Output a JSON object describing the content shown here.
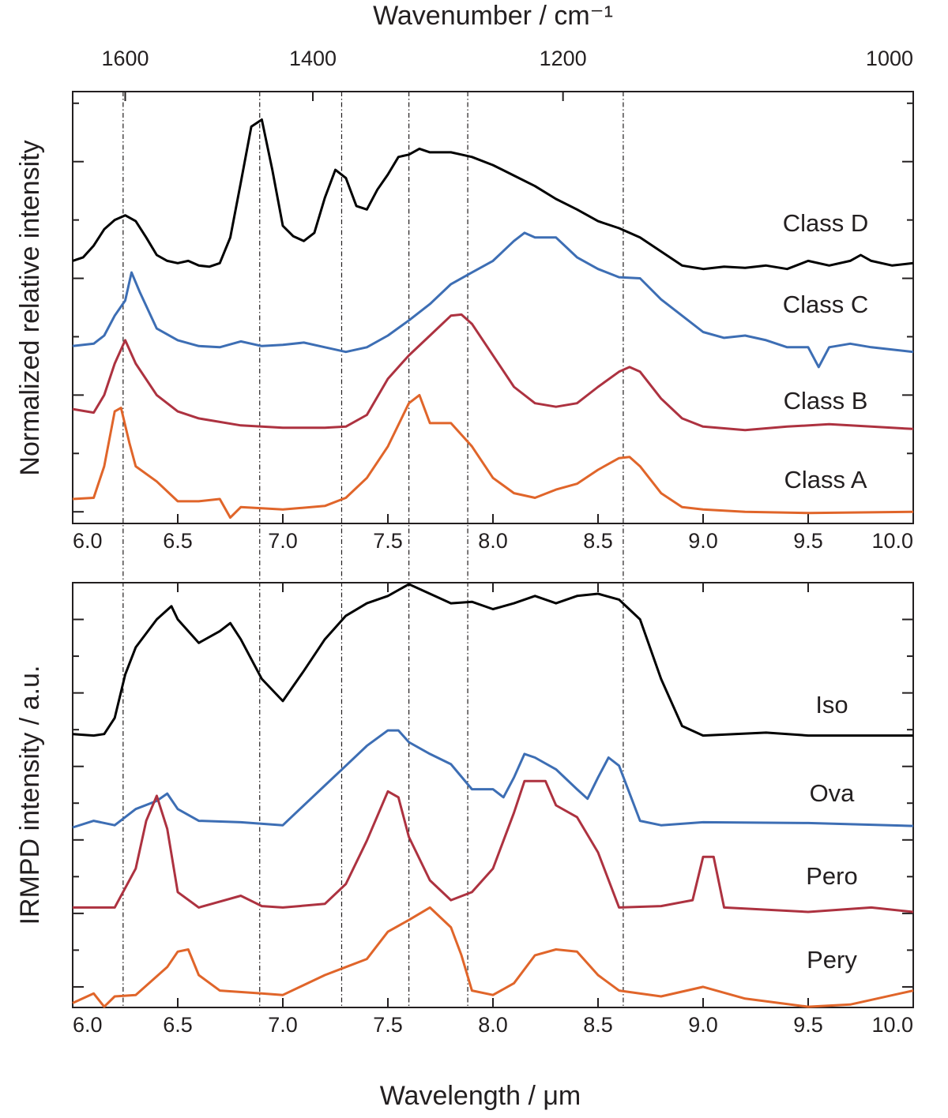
{
  "chart_data": [
    {
      "type": "line",
      "x2label": "Wavenumber / cm⁻¹",
      "x2ticks": [
        1600,
        1400,
        1200,
        1000
      ],
      "ylabel": "Normalized relative intensity",
      "xlim": [
        6,
        10
      ],
      "xticks": [
        {
          "value": 6,
          "label": "6.0"
        },
        {
          "value": 6.5,
          "label": "6.5"
        },
        {
          "value": 7,
          "label": "7.0"
        },
        {
          "value": 7.5,
          "label": "7.5"
        },
        {
          "value": 8,
          "label": "8.0"
        },
        {
          "value": 8.5,
          "label": "8.5"
        },
        {
          "value": 9,
          "label": "9.0"
        },
        {
          "value": 9.5,
          "label": "9.5"
        },
        {
          "value": 10,
          "label": "10.0"
        }
      ],
      "ylim": [
        -0.1,
        3.6
      ],
      "yticks": [
        0,
        0.5,
        1,
        1.5,
        2,
        2.5,
        3,
        3.5
      ],
      "vlines": [
        6.24,
        6.89,
        7.28,
        7.6,
        7.88,
        8.62
      ],
      "series": [
        {
          "name": "Class D",
          "color": "#000000",
          "x": [
            6.0,
            6.05,
            6.1,
            6.15,
            6.2,
            6.25,
            6.3,
            6.35,
            6.4,
            6.45,
            6.5,
            6.55,
            6.6,
            6.65,
            6.7,
            6.75,
            6.8,
            6.85,
            6.9,
            6.95,
            7.0,
            7.05,
            7.1,
            7.15,
            7.2,
            7.25,
            7.3,
            7.35,
            7.4,
            7.45,
            7.5,
            7.55,
            7.6,
            7.65,
            7.7,
            7.75,
            7.8,
            7.85,
            7.9,
            8.0,
            8.1,
            8.2,
            8.3,
            8.4,
            8.5,
            8.6,
            8.7,
            8.8,
            8.9,
            9.0,
            9.1,
            9.2,
            9.3,
            9.4,
            9.5,
            9.6,
            9.7,
            9.75,
            9.8,
            9.9,
            10.0
          ],
          "values": [
            2.15,
            2.18,
            2.28,
            2.42,
            2.5,
            2.54,
            2.49,
            2.35,
            2.2,
            2.15,
            2.13,
            2.15,
            2.11,
            2.1,
            2.13,
            2.35,
            2.82,
            3.3,
            3.36,
            2.93,
            2.45,
            2.36,
            2.32,
            2.39,
            2.69,
            2.93,
            2.86,
            2.62,
            2.59,
            2.76,
            2.89,
            3.04,
            3.06,
            3.11,
            3.08,
            3.08,
            3.08,
            3.06,
            3.04,
            2.97,
            2.88,
            2.79,
            2.68,
            2.59,
            2.49,
            2.43,
            2.35,
            2.23,
            2.11,
            2.08,
            2.1,
            2.09,
            2.11,
            2.08,
            2.15,
            2.11,
            2.15,
            2.2,
            2.15,
            2.11,
            2.13
          ]
        },
        {
          "name": "Class C",
          "color": "#3d6eb4",
          "x": [
            6.0,
            6.1,
            6.15,
            6.2,
            6.25,
            6.28,
            6.32,
            6.4,
            6.5,
            6.6,
            6.7,
            6.8,
            6.9,
            7.0,
            7.1,
            7.2,
            7.3,
            7.4,
            7.5,
            7.6,
            7.7,
            7.8,
            7.9,
            8.0,
            8.1,
            8.15,
            8.2,
            8.3,
            8.4,
            8.5,
            8.6,
            8.7,
            8.8,
            8.9,
            9.0,
            9.1,
            9.2,
            9.3,
            9.4,
            9.5,
            9.55,
            9.6,
            9.7,
            9.8,
            9.9,
            10.0
          ],
          "values": [
            1.42,
            1.44,
            1.51,
            1.68,
            1.81,
            2.05,
            1.88,
            1.57,
            1.47,
            1.42,
            1.41,
            1.46,
            1.42,
            1.43,
            1.45,
            1.41,
            1.37,
            1.41,
            1.51,
            1.64,
            1.78,
            1.95,
            2.05,
            2.15,
            2.32,
            2.39,
            2.35,
            2.35,
            2.18,
            2.08,
            2.01,
            2.0,
            1.82,
            1.68,
            1.54,
            1.49,
            1.51,
            1.47,
            1.41,
            1.41,
            1.24,
            1.41,
            1.44,
            1.41,
            1.39,
            1.37
          ]
        },
        {
          "name": "Class B",
          "color": "#ad3240",
          "x": [
            6.0,
            6.1,
            6.15,
            6.2,
            6.25,
            6.3,
            6.4,
            6.5,
            6.6,
            6.8,
            7.0,
            7.2,
            7.3,
            7.4,
            7.5,
            7.6,
            7.7,
            7.8,
            7.85,
            7.9,
            8.0,
            8.1,
            8.2,
            8.3,
            8.4,
            8.5,
            8.6,
            8.65,
            8.7,
            8.8,
            8.9,
            9.0,
            9.2,
            9.4,
            9.6,
            9.8,
            10.0
          ],
          "values": [
            0.88,
            0.85,
            1.0,
            1.27,
            1.47,
            1.27,
            1.0,
            0.86,
            0.8,
            0.74,
            0.72,
            0.72,
            0.73,
            0.83,
            1.14,
            1.34,
            1.51,
            1.68,
            1.69,
            1.61,
            1.34,
            1.07,
            0.93,
            0.9,
            0.93,
            1.07,
            1.2,
            1.24,
            1.2,
            0.97,
            0.8,
            0.73,
            0.7,
            0.73,
            0.75,
            0.73,
            0.71
          ]
        },
        {
          "name": "Class A",
          "color": "#e0652a",
          "x": [
            6.0,
            6.1,
            6.15,
            6.2,
            6.23,
            6.27,
            6.3,
            6.4,
            6.5,
            6.6,
            6.7,
            6.75,
            6.8,
            7.0,
            7.2,
            7.3,
            7.4,
            7.5,
            7.6,
            7.65,
            7.7,
            7.8,
            7.9,
            8.0,
            8.1,
            8.2,
            8.3,
            8.4,
            8.5,
            8.6,
            8.65,
            8.7,
            8.8,
            8.9,
            9.0,
            9.2,
            9.5,
            10.0
          ],
          "values": [
            0.11,
            0.12,
            0.39,
            0.86,
            0.89,
            0.59,
            0.39,
            0.26,
            0.09,
            0.09,
            0.11,
            -0.05,
            0.04,
            0.02,
            0.05,
            0.12,
            0.29,
            0.56,
            0.93,
            1.0,
            0.76,
            0.76,
            0.56,
            0.29,
            0.16,
            0.12,
            0.19,
            0.24,
            0.36,
            0.46,
            0.47,
            0.39,
            0.16,
            0.04,
            0.02,
            0.0,
            -0.01,
            0.0
          ]
        }
      ]
    },
    {
      "type": "line",
      "xlabel": "Wavelength / μm",
      "ylabel": "IRMPD intensity / a.u.",
      "xlim": [
        6,
        10
      ],
      "xticks": [
        {
          "value": 6,
          "label": "6.0"
        },
        {
          "value": 6.5,
          "label": "6.5"
        },
        {
          "value": 7,
          "label": "7.0"
        },
        {
          "value": 7.5,
          "label": "7.5"
        },
        {
          "value": 8,
          "label": "8.0"
        },
        {
          "value": 8.5,
          "label": "8.5"
        },
        {
          "value": 9,
          "label": "9.0"
        },
        {
          "value": 9.5,
          "label": "9.5"
        },
        {
          "value": 10,
          "label": "10.0"
        }
      ],
      "ylim": [
        -0.28,
        5.5
      ],
      "yticks": [
        0,
        0.5,
        1,
        1.5,
        2,
        2.5,
        3,
        3.5,
        4,
        4.5,
        5
      ],
      "series": [
        {
          "name": "Iso",
          "color": "#000000",
          "x": [
            6.0,
            6.1,
            6.15,
            6.2,
            6.25,
            6.3,
            6.4,
            6.47,
            6.5,
            6.6,
            6.7,
            6.75,
            6.8,
            6.9,
            7.0,
            7.1,
            7.2,
            7.3,
            7.4,
            7.5,
            7.6,
            7.7,
            7.8,
            7.9,
            8.0,
            8.1,
            8.2,
            8.3,
            8.4,
            8.5,
            8.6,
            8.7,
            8.8,
            8.9,
            9.0,
            9.3,
            9.5,
            10.0
          ],
          "values": [
            3.44,
            3.42,
            3.44,
            3.66,
            4.25,
            4.62,
            5.0,
            5.18,
            5.0,
            4.68,
            4.84,
            4.95,
            4.73,
            4.19,
            3.89,
            4.3,
            4.73,
            5.05,
            5.22,
            5.32,
            5.48,
            5.35,
            5.22,
            5.24,
            5.14,
            5.22,
            5.32,
            5.22,
            5.32,
            5.35,
            5.27,
            5.0,
            4.19,
            3.55,
            3.42,
            3.46,
            3.42,
            3.42
          ]
        },
        {
          "name": "Ova",
          "color": "#3d6eb4",
          "x": [
            6.0,
            6.1,
            6.2,
            6.3,
            6.4,
            6.45,
            6.5,
            6.6,
            6.8,
            7.0,
            7.1,
            7.2,
            7.3,
            7.4,
            7.5,
            7.55,
            7.6,
            7.7,
            7.8,
            7.9,
            8.0,
            8.05,
            8.1,
            8.15,
            8.2,
            8.3,
            8.4,
            8.45,
            8.5,
            8.55,
            8.6,
            8.7,
            8.8,
            9.0,
            9.5,
            10.0
          ],
          "values": [
            2.17,
            2.26,
            2.2,
            2.42,
            2.53,
            2.63,
            2.42,
            2.26,
            2.24,
            2.2,
            2.47,
            2.74,
            3.01,
            3.28,
            3.49,
            3.49,
            3.33,
            3.17,
            3.03,
            2.69,
            2.69,
            2.58,
            2.85,
            3.17,
            3.12,
            2.96,
            2.69,
            2.56,
            2.85,
            3.12,
            3.01,
            2.26,
            2.2,
            2.24,
            2.23,
            2.19
          ]
        },
        {
          "name": "Pero",
          "color": "#ad3240",
          "x": [
            6.0,
            6.1,
            6.2,
            6.3,
            6.35,
            6.4,
            6.45,
            6.5,
            6.6,
            6.8,
            6.9,
            7.0,
            7.2,
            7.3,
            7.4,
            7.5,
            7.55,
            7.6,
            7.7,
            7.8,
            7.9,
            8.0,
            8.1,
            8.15,
            8.25,
            8.3,
            8.4,
            8.5,
            8.6,
            8.8,
            8.95,
            9.0,
            9.05,
            9.1,
            9.5,
            9.8,
            10.0
          ],
          "values": [
            1.08,
            1.08,
            1.08,
            1.61,
            2.26,
            2.6,
            2.15,
            1.29,
            1.08,
            1.24,
            1.1,
            1.08,
            1.13,
            1.4,
            1.99,
            2.66,
            2.58,
            2.04,
            1.45,
            1.18,
            1.29,
            1.61,
            2.37,
            2.8,
            2.8,
            2.47,
            2.31,
            1.83,
            1.08,
            1.1,
            1.18,
            1.77,
            1.77,
            1.08,
            1.02,
            1.08,
            1.02
          ]
        },
        {
          "name": "Pery",
          "color": "#e0652a",
          "x": [
            6.0,
            6.1,
            6.15,
            6.2,
            6.3,
            6.45,
            6.5,
            6.55,
            6.6,
            6.7,
            6.9,
            7.0,
            7.2,
            7.3,
            7.4,
            7.5,
            7.6,
            7.7,
            7.8,
            7.85,
            7.9,
            8.0,
            8.1,
            8.2,
            8.3,
            8.4,
            8.5,
            8.6,
            8.8,
            9.0,
            9.2,
            9.5,
            9.7,
            10.0
          ],
          "values": [
            -0.22,
            -0.09,
            -0.27,
            -0.13,
            -0.11,
            0.27,
            0.48,
            0.51,
            0.16,
            -0.05,
            -0.09,
            -0.11,
            0.16,
            0.27,
            0.38,
            0.75,
            0.91,
            1.08,
            0.81,
            0.43,
            -0.05,
            -0.11,
            0.05,
            0.43,
            0.51,
            0.48,
            0.16,
            -0.05,
            -0.13,
            0.0,
            -0.16,
            -0.27,
            -0.24,
            -0.05
          ]
        }
      ]
    }
  ]
}
